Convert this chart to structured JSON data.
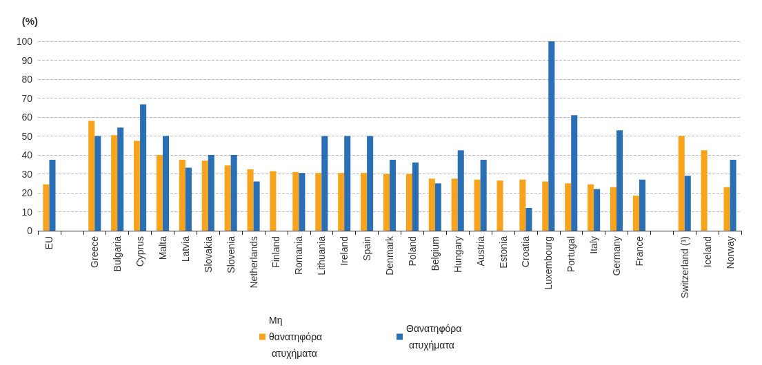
{
  "chart_data": {
    "type": "bar",
    "ylabel": "(%)",
    "categories": [
      "EU",
      null,
      "Greece",
      "Bulgaria",
      "Cyprus",
      "Malta",
      "Latvia",
      "Slovakia",
      "Slovenia",
      "Netherlands",
      "Finland",
      "Romania",
      "Lithuania",
      "Ireland",
      "Spain",
      "Denmark",
      "Poland",
      "Belgium",
      "Hungary",
      "Austria",
      "Estonia",
      "Croatia",
      "Luxembourg",
      "Portugal",
      "Italy",
      "Germany",
      "France",
      null,
      "Switzerland (¹)",
      "Iceland",
      "Norway"
    ],
    "series": [
      {
        "name": "Μη θανατηφόρα ατυχήματα",
        "color": "#f8a31c",
        "values": [
          24.5,
          null,
          58,
          50.5,
          47.5,
          40,
          37.5,
          37,
          34.5,
          32.5,
          31.5,
          31,
          30.5,
          30.5,
          30.5,
          30,
          30,
          27.5,
          27.5,
          27,
          26.5,
          27,
          26,
          25,
          24.5,
          23,
          18.5,
          null,
          50,
          42.5,
          23
        ]
      },
      {
        "name": "Θανατηφόρα ατυχήματα",
        "color": "#2a6eb4",
        "values": [
          37.5,
          null,
          50,
          54.5,
          66.7,
          50,
          33.3,
          40,
          40,
          26,
          null,
          30.5,
          50,
          50,
          50,
          37.5,
          36,
          25,
          42.5,
          37.5,
          null,
          12,
          100,
          61,
          22,
          53,
          27,
          null,
          29,
          null,
          37.5
        ]
      }
    ],
    "ylim": [
      0,
      100
    ],
    "yticks": [
      0,
      10,
      20,
      30,
      40,
      50,
      60,
      70,
      80,
      90,
      100
    ],
    "grid": "y",
    "legend": "bottom"
  }
}
